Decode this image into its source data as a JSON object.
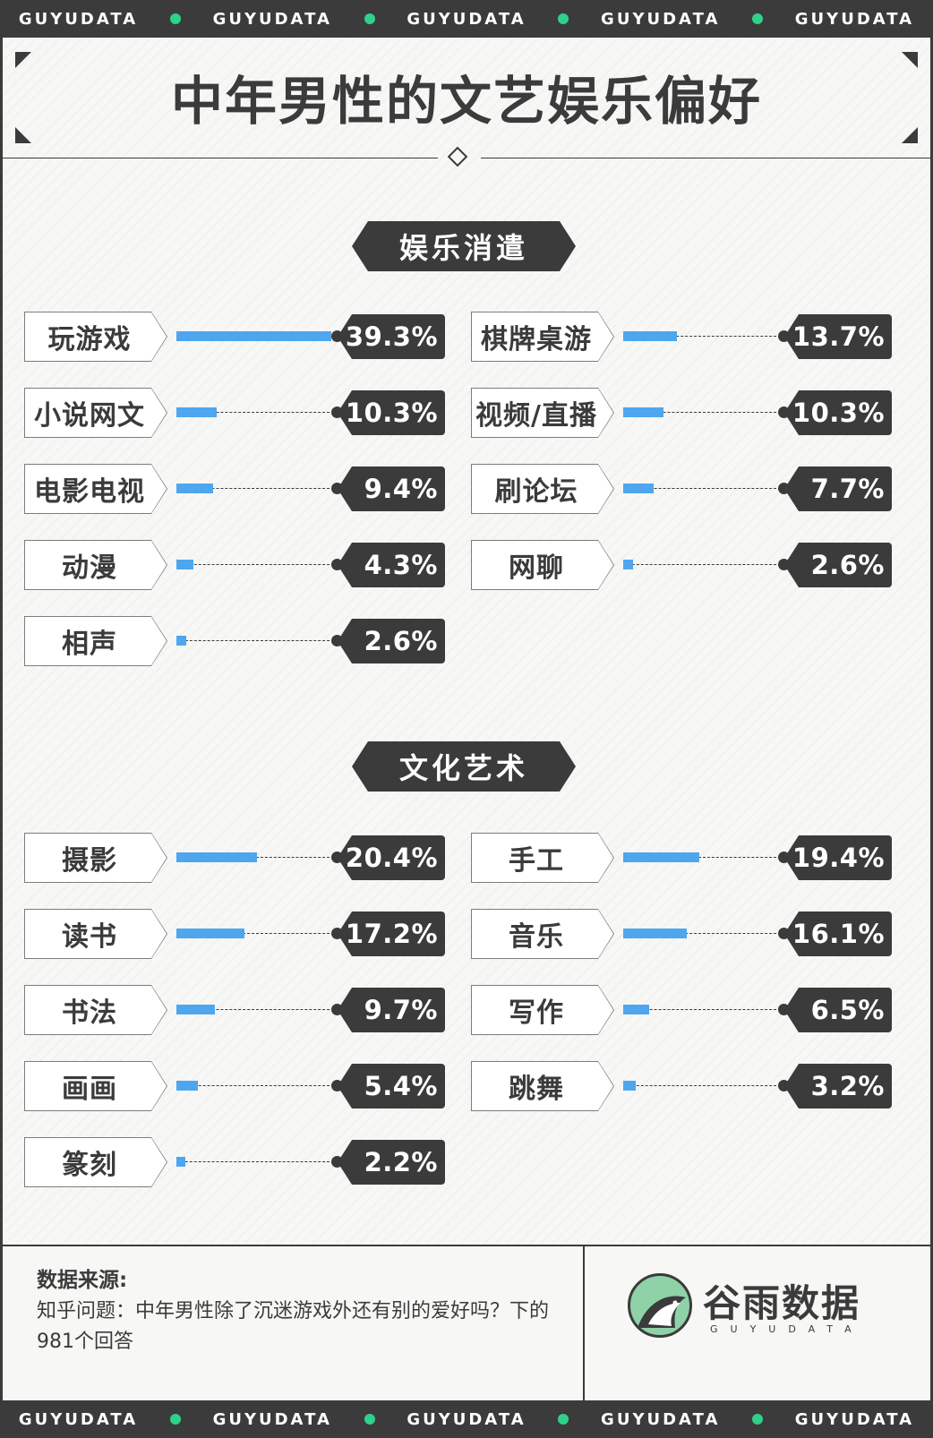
{
  "brand": {
    "strip_text": "GUYUDATA",
    "logo_name": "谷雨数据",
    "logo_sub": "GUYUDATA"
  },
  "title": "中年男性的文艺娱乐偏好",
  "colors": {
    "bar": "#4ea6ee",
    "dark": "#3b3b3b",
    "accent_dot": "#2fd18a",
    "logo": "#8fd2a8"
  },
  "footer": {
    "source_label": "数据来源:",
    "source_text": "知乎问题：中年男性除了沉迷游戏外还有别的爱好吗？下的981个回答"
  },
  "chart_data": [
    {
      "type": "bar",
      "title": "娱乐消遣",
      "categories": [
        "玩游戏",
        "棋牌桌游",
        "小说网文",
        "视频/直播",
        "电影电视",
        "刷论坛",
        "动漫",
        "网聊",
        "相声"
      ],
      "values": [
        39.3,
        13.7,
        10.3,
        10.3,
        9.4,
        7.7,
        4.3,
        2.6,
        2.6
      ],
      "labels": [
        "39.3%",
        "13.7%",
        "10.3%",
        "10.3%",
        "9.4%",
        "7.7%",
        "4.3%",
        "2.6%",
        "2.6%"
      ],
      "unit": "%"
    },
    {
      "type": "bar",
      "title": "文化艺术",
      "categories": [
        "摄影",
        "手工",
        "读书",
        "音乐",
        "书法",
        "写作",
        "画画",
        "跳舞",
        "篆刻"
      ],
      "values": [
        20.4,
        19.4,
        17.2,
        16.1,
        9.7,
        6.5,
        5.4,
        3.2,
        2.2
      ],
      "labels": [
        "20.4%",
        "19.4%",
        "17.2%",
        "16.1%",
        "9.7%",
        "6.5%",
        "5.4%",
        "3.2%",
        "2.2%"
      ],
      "unit": "%"
    }
  ]
}
